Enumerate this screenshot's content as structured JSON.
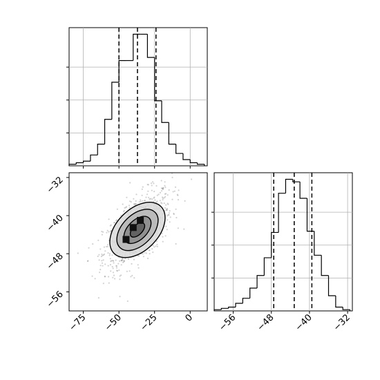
{
  "chart_data": {
    "type": "corner",
    "title": "",
    "parameters": [
      {
        "name": "",
        "range": [
          -85,
          12
        ],
        "quantiles": [
          -50,
          -37,
          -24
        ]
      },
      {
        "name": "",
        "range": [
          -60,
          -31
        ],
        "quantiles": [
          -47.5,
          -43.2,
          -39.5
        ]
      }
    ],
    "hist_x": {
      "bin_edges": [
        -85,
        -80,
        -75,
        -70,
        -65,
        -60,
        -55,
        -50,
        -45,
        -40,
        -35,
        -30,
        -25,
        -20,
        -15,
        -10,
        -5,
        0,
        5,
        10
      ],
      "counts": [
        1,
        2,
        3,
        7,
        14,
        30,
        54,
        68,
        68,
        85,
        85,
        70,
        42,
        28,
        14,
        8,
        4,
        2,
        1
      ]
    },
    "hist_y": {
      "bin_edges": [
        -60,
        -58.5,
        -57,
        -55.5,
        -54,
        -52.5,
        -51,
        -49.5,
        -48,
        -46.5,
        -45,
        -43.5,
        -42,
        -40.5,
        -39,
        -37.5,
        -36,
        -34.5,
        -33,
        -31.5
      ],
      "counts": [
        1,
        2,
        3,
        6,
        10,
        18,
        28,
        42,
        62,
        93,
        104,
        102,
        89,
        63,
        44,
        28,
        12,
        3,
        1
      ]
    },
    "scatter_2d": {
      "xlim": [
        -85,
        12
      ],
      "ylim": [
        -60,
        -31
      ],
      "center": [
        -37,
        -43
      ],
      "contour_levels": 4
    },
    "axes": {
      "x_ticks": [
        -75,
        -50,
        -25,
        0
      ],
      "y_ticks": [
        -32,
        -40,
        -48,
        -56
      ],
      "diag2_ticks": [
        -56,
        -48,
        -40,
        -32
      ]
    },
    "colors": {
      "line": "#000000",
      "grid": "#b0b0b0",
      "points": "#7f7f7f"
    }
  }
}
